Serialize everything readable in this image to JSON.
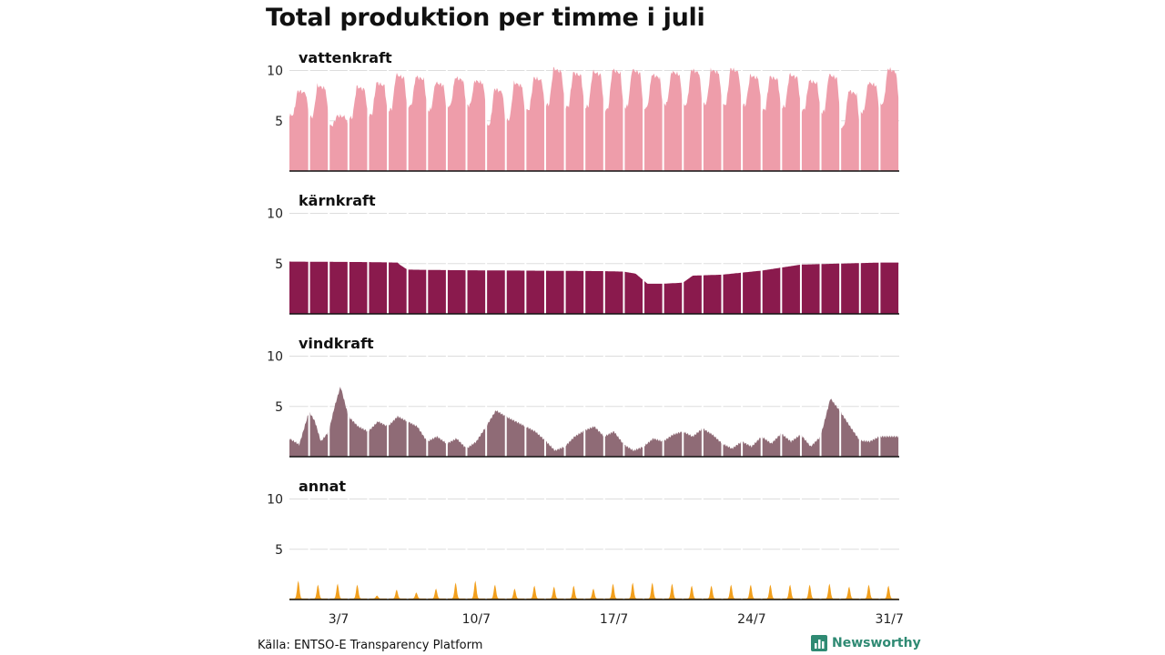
{
  "title": "Total produktion per timme i juli",
  "source": "Källa: ENTSO-E Transparency Platform",
  "brand": {
    "name": "Newsworthy",
    "icon": "bar-chart-logo-icon",
    "color": "#2f8a73"
  },
  "chart_data": {
    "type": "area",
    "layout": "small-multiples",
    "x_unit": "day of July (hourly resolution)",
    "x_range": [
      1,
      31
    ],
    "x_ticks": [
      {
        "day": 3,
        "label": "3/7"
      },
      {
        "day": 10,
        "label": "10/7"
      },
      {
        "day": 17,
        "label": "17/7"
      },
      {
        "day": 24,
        "label": "24/7"
      },
      {
        "day": 31,
        "label": "31/7"
      }
    ],
    "y_range": [
      0,
      11
    ],
    "y_ticks": [
      5,
      10
    ],
    "grid": true,
    "panels": [
      {
        "name": "vattenkraft",
        "color": "#ee9daa",
        "daily": [
          {
            "min": 5.5,
            "max": 8.0
          },
          {
            "min": 5.3,
            "max": 8.5
          },
          {
            "min": 4.5,
            "max": 5.5
          },
          {
            "min": 5.2,
            "max": 8.4
          },
          {
            "min": 5.5,
            "max": 8.8
          },
          {
            "min": 6.0,
            "max": 9.6
          },
          {
            "min": 6.4,
            "max": 9.4
          },
          {
            "min": 6.0,
            "max": 8.8
          },
          {
            "min": 6.4,
            "max": 9.3
          },
          {
            "min": 6.5,
            "max": 9.0
          },
          {
            "min": 4.5,
            "max": 8.2
          },
          {
            "min": 5.0,
            "max": 8.8
          },
          {
            "min": 6.0,
            "max": 9.3
          },
          {
            "min": 6.5,
            "max": 10.2
          },
          {
            "min": 6.3,
            "max": 9.8
          },
          {
            "min": 6.3,
            "max": 9.9
          },
          {
            "min": 6.0,
            "max": 10.1
          },
          {
            "min": 6.3,
            "max": 10.1
          },
          {
            "min": 6.2,
            "max": 9.6
          },
          {
            "min": 6.6,
            "max": 9.9
          },
          {
            "min": 6.5,
            "max": 10.1
          },
          {
            "min": 6.6,
            "max": 10.1
          },
          {
            "min": 6.5,
            "max": 10.2
          },
          {
            "min": 6.5,
            "max": 9.5
          },
          {
            "min": 6.0,
            "max": 9.4
          },
          {
            "min": 6.3,
            "max": 9.6
          },
          {
            "min": 6.0,
            "max": 9.0
          },
          {
            "min": 5.8,
            "max": 9.6
          },
          {
            "min": 4.3,
            "max": 8.0
          },
          {
            "min": 5.8,
            "max": 8.8
          },
          {
            "min": 6.6,
            "max": 10.2
          }
        ]
      },
      {
        "name": "kärnkraft",
        "color": "#8a1a4d",
        "points": [
          [
            1,
            5.2
          ],
          [
            5.0,
            5.15
          ],
          [
            6.5,
            5.1
          ],
          [
            6.6,
            4.9
          ],
          [
            7.0,
            4.4
          ],
          [
            9,
            4.35
          ],
          [
            13,
            4.3
          ],
          [
            17,
            4.25
          ],
          [
            18,
            4.2
          ],
          [
            18.6,
            4.0
          ],
          [
            19.2,
            3.0
          ],
          [
            20,
            3.0
          ],
          [
            21.0,
            3.1
          ],
          [
            21.5,
            3.8
          ],
          [
            23,
            3.9
          ],
          [
            25,
            4.3
          ],
          [
            26,
            4.6
          ],
          [
            27,
            4.9
          ],
          [
            29,
            5.0
          ],
          [
            31,
            5.1
          ]
        ]
      },
      {
        "name": "vindkraft",
        "color": "#8f6b76",
        "points": [
          [
            1,
            1.8
          ],
          [
            1.5,
            1.2
          ],
          [
            2.0,
            4.5
          ],
          [
            2.3,
            3.5
          ],
          [
            2.6,
            1.5
          ],
          [
            3.0,
            2.5
          ],
          [
            3.3,
            5.0
          ],
          [
            3.6,
            7.0
          ],
          [
            4.0,
            4.0
          ],
          [
            4.5,
            3.0
          ],
          [
            5.0,
            2.5
          ],
          [
            5.5,
            3.5
          ],
          [
            6.0,
            3.0
          ],
          [
            6.5,
            4.0
          ],
          [
            7.0,
            3.5
          ],
          [
            7.5,
            3.0
          ],
          [
            8.0,
            1.5
          ],
          [
            8.5,
            2.0
          ],
          [
            9.0,
            1.3
          ],
          [
            9.5,
            1.8
          ],
          [
            10.0,
            0.8
          ],
          [
            10.5,
            1.5
          ],
          [
            11.0,
            3.0
          ],
          [
            11.5,
            4.6
          ],
          [
            12.0,
            4.0
          ],
          [
            12.5,
            3.5
          ],
          [
            13.0,
            3.0
          ],
          [
            13.5,
            2.5
          ],
          [
            14.0,
            1.6
          ],
          [
            14.5,
            0.6
          ],
          [
            15.0,
            1.0
          ],
          [
            15.5,
            2.0
          ],
          [
            16.0,
            2.6
          ],
          [
            16.5,
            3.0
          ],
          [
            17.0,
            2.0
          ],
          [
            17.5,
            2.5
          ],
          [
            18.0,
            1.2
          ],
          [
            18.5,
            0.6
          ],
          [
            19.0,
            1.0
          ],
          [
            19.5,
            1.8
          ],
          [
            20.0,
            1.5
          ],
          [
            20.5,
            2.2
          ],
          [
            21.0,
            2.5
          ],
          [
            21.5,
            2.0
          ],
          [
            22.0,
            2.8
          ],
          [
            22.5,
            2.2
          ],
          [
            23.0,
            1.3
          ],
          [
            23.5,
            0.8
          ],
          [
            24.0,
            1.5
          ],
          [
            24.5,
            1.0
          ],
          [
            25.0,
            2.0
          ],
          [
            25.5,
            1.3
          ],
          [
            26.0,
            2.3
          ],
          [
            26.5,
            1.5
          ],
          [
            27.0,
            2.2
          ],
          [
            27.5,
            1.0
          ],
          [
            28.0,
            2.0
          ],
          [
            28.5,
            5.8
          ],
          [
            29.0,
            4.5
          ],
          [
            29.5,
            3.0
          ],
          [
            30.0,
            1.6
          ],
          [
            30.5,
            1.5
          ],
          [
            31.0,
            2.0
          ]
        ]
      },
      {
        "name": "annat",
        "color": "#f2a01e",
        "peaks": [
          1.8,
          1.4,
          1.5,
          1.4,
          0.3,
          0.9,
          0.6,
          1.0,
          1.6,
          1.8,
          1.4,
          1.0,
          1.3,
          1.2,
          1.3,
          1.0,
          1.5,
          1.6,
          1.6,
          1.5,
          1.3,
          1.3,
          1.4,
          1.4,
          1.4,
          1.4,
          1.4,
          1.5,
          1.2,
          1.4,
          1.3
        ],
        "base": 0.1
      }
    ]
  }
}
